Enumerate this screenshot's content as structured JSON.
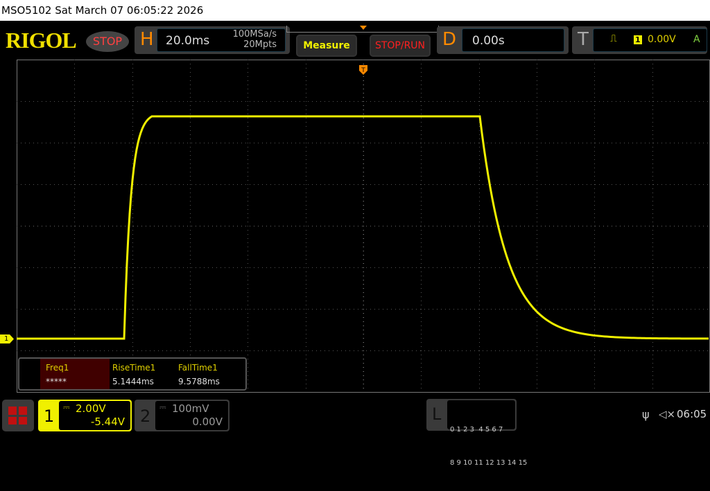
{
  "title_bar": "MSO5102  Sat March 07 06:05:22 2026",
  "logo": "RIGOL",
  "run_state": "STOP",
  "horizontal": {
    "letter": "H",
    "timebase": "20.0ms",
    "sample_rate": "100MSa/s",
    "memory_depth": "20Mpts"
  },
  "buttons": {
    "measure": "Measure",
    "stop_run": "STOP/RUN"
  },
  "delay": {
    "letter": "D",
    "value": "0.00s"
  },
  "trigger": {
    "letter": "T",
    "source": "1",
    "level": "0.00V",
    "mode": "A"
  },
  "channel_marker": "1",
  "measurements": [
    {
      "label": "Freq1",
      "value": "*****"
    },
    {
      "label": "RiseTime1",
      "value": "5.1444ms"
    },
    {
      "label": "FallTime1",
      "value": "9.5788ms"
    }
  ],
  "channels": [
    {
      "number": "1",
      "scale": "2.00V",
      "offset": "-5.44V",
      "active": true,
      "color": "#f0f000"
    },
    {
      "number": "2",
      "scale": "100mV",
      "offset": "0.00V",
      "active": false
    }
  ],
  "logic": {
    "letter": "L",
    "row1": "0 1 2 3  4 5 6 7",
    "row2": "8 9 10 11 12 13 14 15"
  },
  "status": {
    "clock": "06:05"
  },
  "colors": {
    "trace": "#f0f000",
    "accent": "#ff8a00"
  }
}
